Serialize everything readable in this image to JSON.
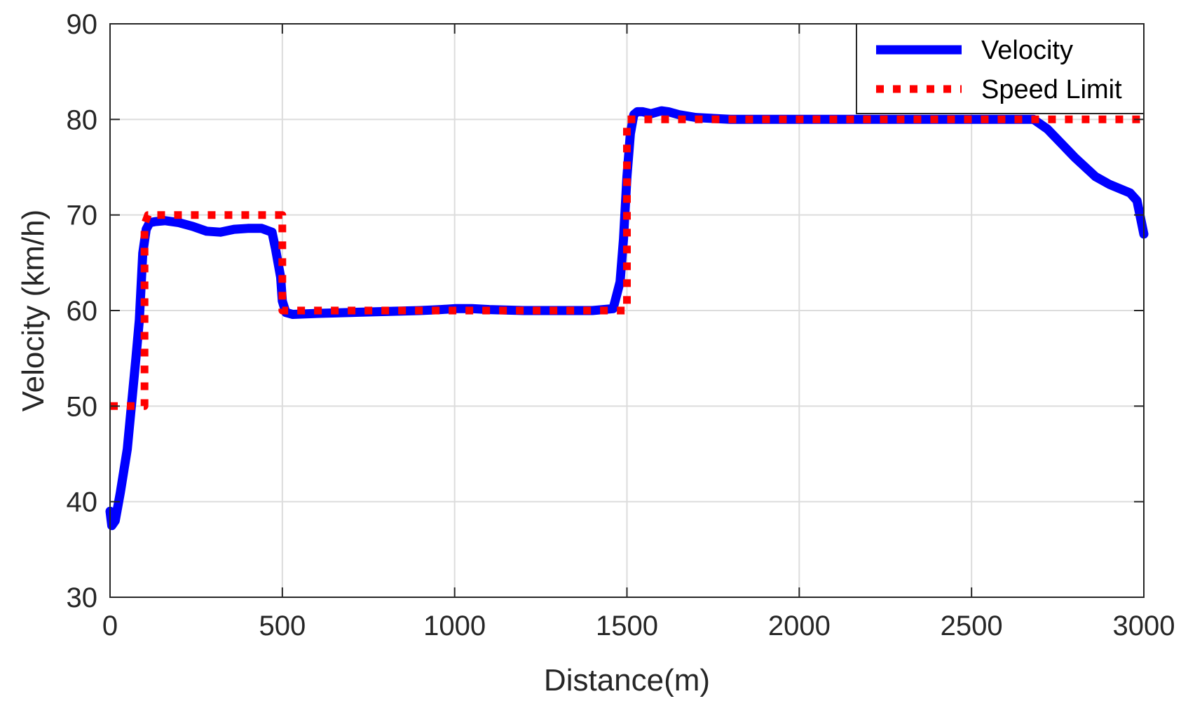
{
  "chart_data": {
    "type": "line",
    "title": "",
    "xlabel": "Distance(m)",
    "ylabel": "Velocity (km/h)",
    "xlim": [
      0,
      3000
    ],
    "ylim": [
      30,
      90
    ],
    "xticks": [
      0,
      500,
      1000,
      1500,
      2000,
      2500,
      3000
    ],
    "yticks": [
      30,
      40,
      50,
      60,
      70,
      80,
      90
    ],
    "xtick_labels": [
      "0",
      "500",
      "1000",
      "1500",
      "2000",
      "2500",
      "3000"
    ],
    "ytick_labels": [
      "30",
      "40",
      "50",
      "60",
      "70",
      "80",
      "90"
    ],
    "grid": true,
    "legend_position": "top-right",
    "series": [
      {
        "name": "Velocity",
        "color": "#0000ff",
        "style": "solid",
        "x": [
          0,
          5,
          15,
          30,
          50,
          75,
          85,
          95,
          105,
          115,
          130,
          160,
          200,
          240,
          280,
          320,
          360,
          400,
          440,
          470,
          480,
          495,
          500,
          510,
          530,
          600,
          700,
          800,
          900,
          960,
          1000,
          1050,
          1100,
          1200,
          1300,
          1400,
          1460,
          1480,
          1490,
          1500,
          1510,
          1520,
          1530,
          1545,
          1570,
          1600,
          1620,
          1650,
          1700,
          1800,
          1900,
          2000,
          2100,
          2200,
          2300,
          2400,
          2500,
          2600,
          2680,
          2720,
          2760,
          2800,
          2860,
          2900,
          2960,
          2980,
          3000
        ],
        "values": [
          39,
          37.5,
          38,
          41,
          45.5,
          55,
          59,
          66,
          68.5,
          69.2,
          69.3,
          69.4,
          69.2,
          68.8,
          68.3,
          68.2,
          68.5,
          68.6,
          68.6,
          68.2,
          66.5,
          63.5,
          61,
          59.8,
          59.6,
          59.7,
          59.8,
          59.9,
          60,
          60.1,
          60.2,
          60.2,
          60.1,
          60,
          60,
          60,
          60.2,
          63,
          67.5,
          74,
          78.5,
          80.5,
          80.8,
          80.8,
          80.6,
          80.9,
          80.8,
          80.5,
          80.2,
          80,
          80,
          80,
          80,
          80,
          80,
          80,
          80,
          80,
          80,
          79,
          77.5,
          76,
          74,
          73.2,
          72.3,
          71.5,
          68
        ]
      },
      {
        "name": "Speed Limit",
        "color": "#ff0000",
        "style": "dotted",
        "x": [
          0,
          100,
          100,
          110,
          500,
          500,
          1500,
          1500,
          3000
        ],
        "values": [
          50,
          50,
          69,
          70,
          70,
          60,
          60,
          80,
          80
        ]
      }
    ]
  }
}
